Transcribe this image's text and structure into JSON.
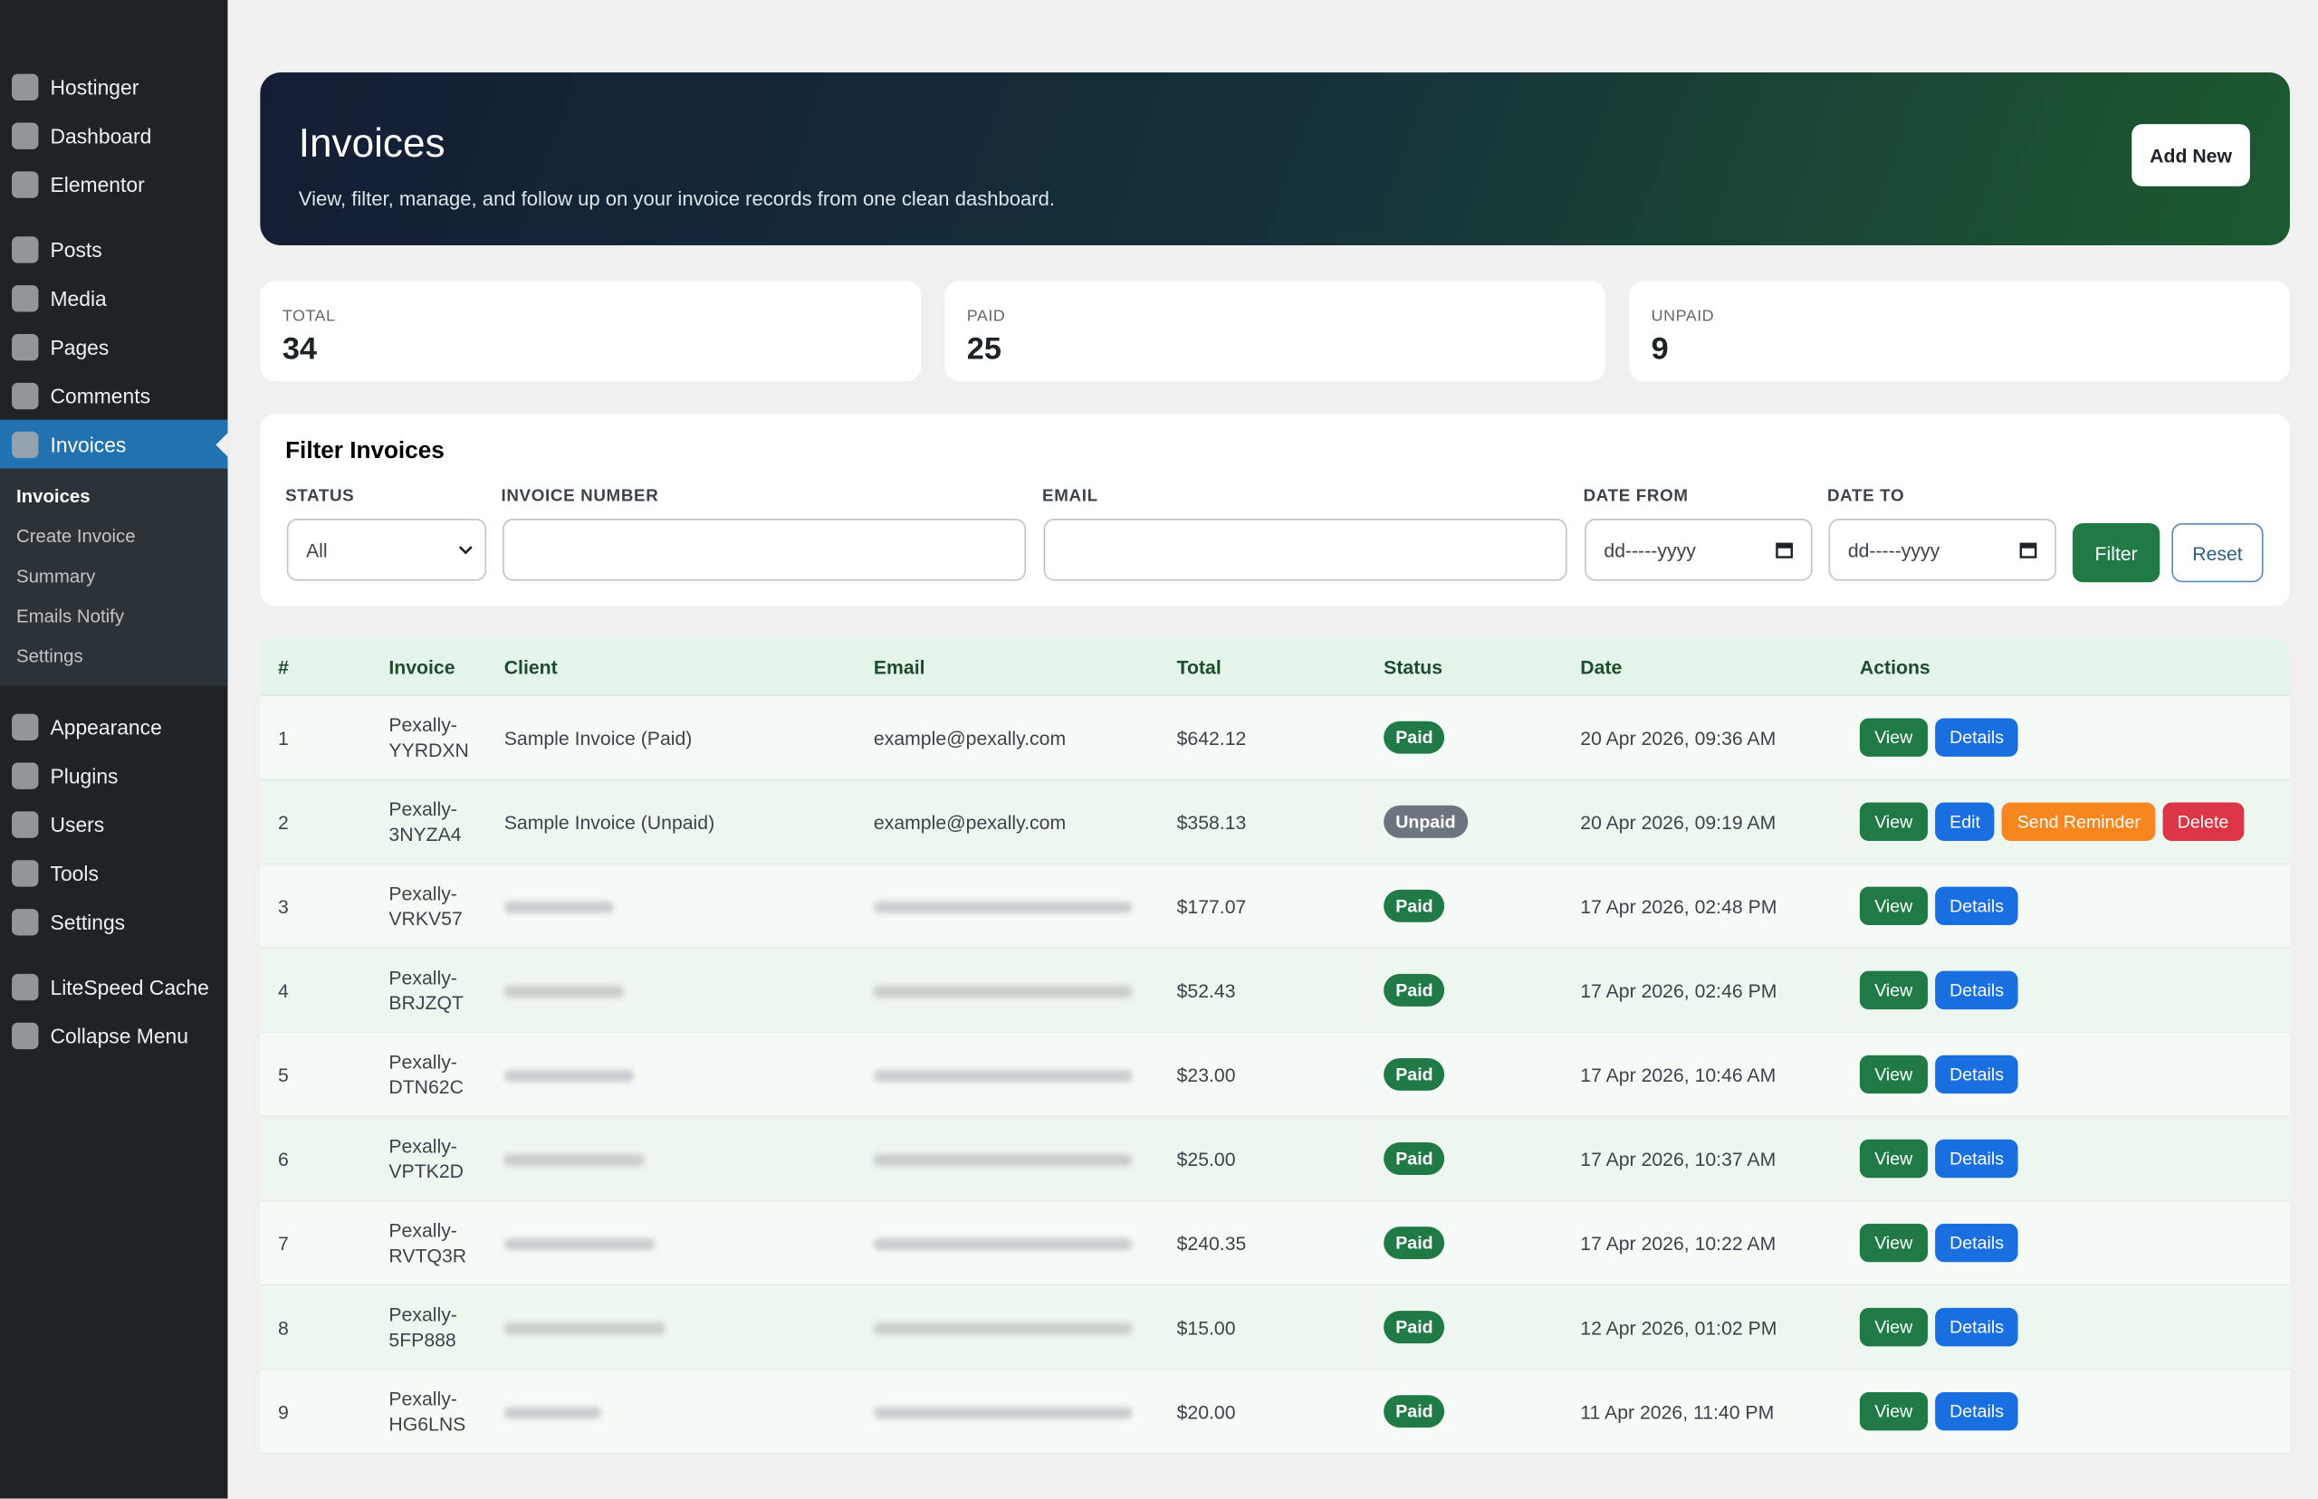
{
  "sidebar": {
    "groups": [
      [
        {
          "label": "Hostinger"
        },
        {
          "label": "Dashboard"
        },
        {
          "label": "Elementor"
        }
      ],
      [
        {
          "label": "Posts"
        },
        {
          "label": "Media"
        },
        {
          "label": "Pages"
        },
        {
          "label": "Comments"
        },
        {
          "label": "Invoices",
          "submenu": [
            "Invoices",
            "Create Invoice",
            "Summary",
            "Emails Notify",
            "Settings"
          ]
        }
      ],
      [
        {
          "label": "Appearance"
        },
        {
          "label": "Plugins"
        },
        {
          "label": "Users"
        },
        {
          "label": "Tools"
        },
        {
          "label": "Settings"
        }
      ],
      [
        {
          "label": "LiteSpeed Cache"
        },
        {
          "label": "Collapse Menu"
        }
      ]
    ]
  },
  "header": {
    "title": "Invoices",
    "subtitle": "View, filter, manage, and follow up on your invoice records from one clean dashboard.",
    "button": "Add New"
  },
  "stats": [
    {
      "label": "TOTAL",
      "value": "34"
    },
    {
      "label": "PAID",
      "value": "25"
    },
    {
      "label": "UNPAID",
      "value": "9"
    }
  ],
  "filter": {
    "title": "Filter Invoices",
    "status_label": "STATUS",
    "status_value": "All",
    "invoice_label": "INVOICE NUMBER",
    "email_label": "EMAIL",
    "date_from_label": "DATE FROM",
    "date_to_label": "DATE TO",
    "date_placeholder": "dd-----yyyy",
    "filter_button": "Filter",
    "reset_button": "Reset"
  },
  "table": {
    "columns": [
      "#",
      "Invoice",
      "Client",
      "Email",
      "Total",
      "Status",
      "Date",
      "Actions"
    ],
    "status_colors": {
      "Paid": "#1f7a45",
      "Unpaid": "#6c757d"
    },
    "rows": [
      {
        "num": "1",
        "invoice": "Pexally-YYRDXN",
        "client": "Sample Invoice (Paid)",
        "email": "example@pexally.com",
        "total": "$642.12",
        "status": "Paid",
        "date": "20 Apr 2026, 09:36 AM",
        "actions": [
          {
            "label": "View",
            "color": "#1f7a45"
          },
          {
            "label": "Details",
            "color": "#1a6fe0"
          }
        ]
      },
      {
        "num": "2",
        "invoice": "Pexally-3NYZA4",
        "client": "Sample Invoice (Unpaid)",
        "email": "example@pexally.com",
        "total": "$358.13",
        "status": "Unpaid",
        "date": "20 Apr 2026, 09:19 AM",
        "actions": [
          {
            "label": "View",
            "color": "#1f7a45"
          },
          {
            "label": "Edit",
            "color": "#1a6fe0"
          },
          {
            "label": "Send Reminder",
            "color": "#f7861e"
          },
          {
            "label": "Delete",
            "color": "#dc3545"
          }
        ]
      },
      {
        "num": "3",
        "invoice": "Pexally-VRKV57",
        "client": null,
        "email": null,
        "total": "$177.07",
        "status": "Paid",
        "date": "17 Apr 2026, 02:48 PM",
        "actions": [
          {
            "label": "View",
            "color": "#1f7a45"
          },
          {
            "label": "Details",
            "color": "#1a6fe0"
          }
        ]
      },
      {
        "num": "4",
        "invoice": "Pexally-BRJZQT",
        "client": null,
        "email": null,
        "total": "$52.43",
        "status": "Paid",
        "date": "17 Apr 2026, 02:46 PM",
        "actions": [
          {
            "label": "View",
            "color": "#1f7a45"
          },
          {
            "label": "Details",
            "color": "#1a6fe0"
          }
        ]
      },
      {
        "num": "5",
        "invoice": "Pexally-DTN62C",
        "client": null,
        "email": null,
        "total": "$23.00",
        "status": "Paid",
        "date": "17 Apr 2026, 10:46 AM",
        "actions": [
          {
            "label": "View",
            "color": "#1f7a45"
          },
          {
            "label": "Details",
            "color": "#1a6fe0"
          }
        ]
      },
      {
        "num": "6",
        "invoice": "Pexally-VPTK2D",
        "client": null,
        "email": null,
        "total": "$25.00",
        "status": "Paid",
        "date": "17 Apr 2026, 10:37 AM",
        "actions": [
          {
            "label": "View",
            "color": "#1f7a45"
          },
          {
            "label": "Details",
            "color": "#1a6fe0"
          }
        ]
      },
      {
        "num": "7",
        "invoice": "Pexally-RVTQ3R",
        "client": null,
        "email": null,
        "total": "$240.35",
        "status": "Paid",
        "date": "17 Apr 2026, 10:22 AM",
        "actions": [
          {
            "label": "View",
            "color": "#1f7a45"
          },
          {
            "label": "Details",
            "color": "#1a6fe0"
          }
        ]
      },
      {
        "num": "8",
        "invoice": "Pexally-5FP888",
        "client": null,
        "email": null,
        "total": "$15.00",
        "status": "Paid",
        "date": "12 Apr 2026, 01:02 PM",
        "actions": [
          {
            "label": "View",
            "color": "#1f7a45"
          },
          {
            "label": "Details",
            "color": "#1a6fe0"
          }
        ]
      },
      {
        "num": "9",
        "invoice": "Pexally-HG6LNS",
        "client": null,
        "email": null,
        "total": "$20.00",
        "status": "Paid",
        "date": "11 Apr 2026, 11:40 PM",
        "actions": [
          {
            "label": "View",
            "color": "#1f7a45"
          },
          {
            "label": "Details",
            "color": "#1a6fe0"
          }
        ]
      }
    ]
  }
}
